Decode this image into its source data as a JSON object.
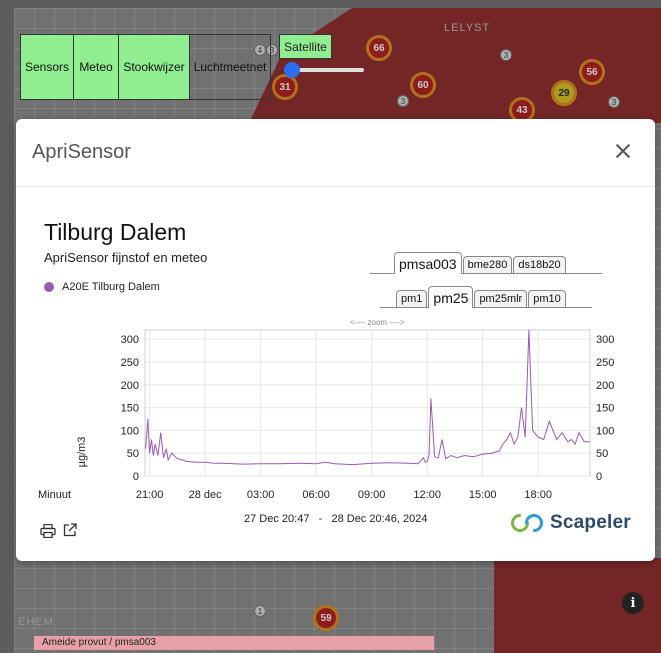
{
  "layers": [
    "Sensors",
    "Meteo",
    "Stookwijzer",
    "Luchtmeetnet"
  ],
  "satellite_label": "Satellite",
  "map": {
    "clusters": [
      "66",
      "60",
      "56",
      "43",
      "29",
      "31",
      "59"
    ],
    "small_markers": [
      "4",
      "3",
      "3",
      "3",
      "3",
      "1"
    ],
    "labels": [
      "LELYST",
      "EHEM"
    ]
  },
  "modal": {
    "title": "ApriSensor",
    "sensor_name": "Tilburg Dalem",
    "subtitle": "ApriSensor fijnstof en meteo",
    "legend_entry": "A20E Tilburg Dalem",
    "sensor_tabs": [
      "pmsa003",
      "bme280",
      "ds18b20"
    ],
    "active_sensor_tab": "pmsa003",
    "metric_tabs": [
      "pm1",
      "pm25",
      "pm25mlr",
      "pm10"
    ],
    "active_metric_tab": "pm25",
    "zoom_hint": "<---- zoom ---->",
    "date_from": "27 Dec 20:47",
    "date_sep": "-",
    "date_to": "28 Dec 20:46, 2024",
    "logo_text": "Scapeler"
  },
  "chart_data": {
    "type": "line",
    "ylabel": "µg/m3",
    "xlabel": "Minuut",
    "ylim": [
      0,
      320
    ],
    "yticks": [
      0,
      50,
      100,
      150,
      200,
      250,
      300
    ],
    "xlim": [
      20.75,
      44.8
    ],
    "xtick_positions": [
      21,
      24,
      27,
      30,
      33,
      36,
      39,
      42
    ],
    "xtick_labels": [
      "21:00",
      "28 dec",
      "03:00",
      "06:00",
      "09:00",
      "12:00",
      "15:00",
      "18:00"
    ],
    "color": "#9b59b6",
    "grid": true,
    "series": [
      {
        "name": "A20E Tilburg Dalem",
        "x": [
          20.78,
          20.9,
          21.0,
          21.1,
          21.2,
          21.3,
          21.45,
          21.6,
          21.75,
          21.9,
          22.0,
          22.2,
          22.5,
          22.8,
          23.0,
          23.5,
          24.0,
          24.5,
          25.0,
          26.0,
          27.0,
          28.0,
          29.0,
          30.0,
          30.5,
          31.0,
          32.0,
          33.0,
          34.0,
          35.0,
          35.5,
          35.8,
          35.9,
          36.0,
          36.1,
          36.2,
          36.4,
          36.6,
          36.8,
          37.0,
          37.3,
          37.6,
          38.0,
          38.5,
          39.0,
          39.5,
          39.9,
          40.1,
          40.3,
          40.5,
          40.7,
          40.9,
          41.1,
          41.3,
          41.5,
          41.7,
          41.9,
          42.0,
          42.3,
          42.6,
          43.0,
          43.3,
          43.6,
          43.8,
          44.0,
          44.2,
          44.5,
          44.8
        ],
        "y": [
          60,
          125,
          50,
          80,
          45,
          70,
          45,
          95,
          40,
          60,
          35,
          50,
          38,
          35,
          32,
          30,
          30,
          28,
          28,
          26,
          27,
          27,
          28,
          27,
          30,
          27,
          25,
          28,
          29,
          28,
          27,
          40,
          30,
          32,
          45,
          170,
          42,
          40,
          80,
          38,
          45,
          40,
          45,
          42,
          48,
          50,
          55,
          70,
          80,
          95,
          70,
          85,
          150,
          85,
          320,
          100,
          90,
          85,
          80,
          120,
          80,
          95,
          75,
          80,
          70,
          95,
          75,
          75
        ]
      }
    ]
  }
}
